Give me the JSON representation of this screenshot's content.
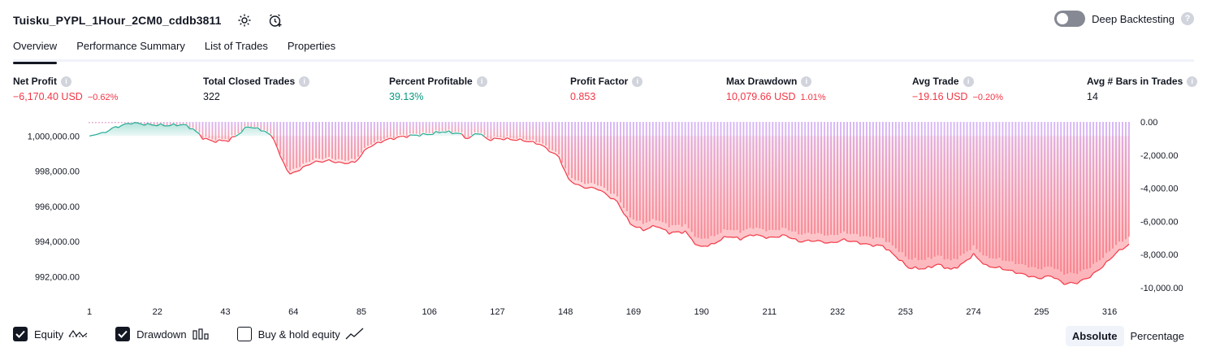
{
  "header": {
    "title": "Tuisku_PYPL_1Hour_2CM0_cddb3811",
    "settings_icon": "gear-icon",
    "alert_icon": "add-alert-clock-icon"
  },
  "deep_backtesting": {
    "label": "Deep Backtesting",
    "enabled": false,
    "help": "?"
  },
  "tabs": [
    {
      "label": "Overview",
      "active": true
    },
    {
      "label": "Performance Summary",
      "active": false
    },
    {
      "label": "List of Trades",
      "active": false
    },
    {
      "label": "Properties",
      "active": false
    }
  ],
  "metrics": [
    {
      "label": "Net Profit",
      "value": "−6,170.40 USD",
      "pct": "−0.62%",
      "color": "#f23645"
    },
    {
      "label": "Total Closed Trades",
      "value": "322",
      "pct": "",
      "color": "#131722"
    },
    {
      "label": "Percent Profitable",
      "value": "39.13%",
      "pct": "",
      "color": "#089981"
    },
    {
      "label": "Profit Factor",
      "value": "0.853",
      "pct": "",
      "color": "#f23645"
    },
    {
      "label": "Max Drawdown",
      "value": "10,079.66 USD",
      "pct": "1.01%",
      "color": "#f23645"
    },
    {
      "label": "Avg Trade",
      "value": "−19.16 USD",
      "pct": "−0.20%",
      "color": "#f23645"
    },
    {
      "label": "Avg # Bars in Trades",
      "value": "14",
      "pct": "",
      "color": "#131722"
    }
  ],
  "chart_data": {
    "type": "area",
    "x_ticks": [
      "1",
      "22",
      "43",
      "64",
      "85",
      "106",
      "127",
      "148",
      "169",
      "190",
      "211",
      "232",
      "253",
      "274",
      "295",
      "316"
    ],
    "left_axis": {
      "ticks": [
        "1,000,000.00",
        "998,000.00",
        "996,000.00",
        "994,000.00",
        "992,000.00"
      ],
      "tick_values": [
        1000000,
        998000,
        996000,
        994000,
        992000
      ],
      "range": [
        991000,
        1000800
      ]
    },
    "right_axis": {
      "ticks": [
        "0.00",
        "-2,000.00",
        "-4,000.00",
        "-6,000.00",
        "-8,000.00",
        "-10,000.00"
      ],
      "tick_values": [
        0,
        -2000,
        -4000,
        -6000,
        -8000,
        -10000
      ],
      "range": [
        -10400,
        0
      ]
    },
    "baseline": 1000000,
    "equity_anchors": [
      [
        1,
        1000000
      ],
      [
        5,
        1000150
      ],
      [
        9,
        1000500
      ],
      [
        14,
        1000750
      ],
      [
        19,
        1000650
      ],
      [
        25,
        1000600
      ],
      [
        30,
        1000650
      ],
      [
        33,
        1000400
      ],
      [
        36,
        999900
      ],
      [
        39,
        999700
      ],
      [
        44,
        999750
      ],
      [
        47,
        1000100
      ],
      [
        50,
        1000550
      ],
      [
        55,
        1000300
      ],
      [
        58,
        999850
      ],
      [
        60,
        998800
      ],
      [
        63,
        997800
      ],
      [
        66,
        998100
      ],
      [
        70,
        998500
      ],
      [
        75,
        998600
      ],
      [
        79,
        998450
      ],
      [
        83,
        998500
      ],
      [
        87,
        999350
      ],
      [
        92,
        999750
      ],
      [
        97,
        999950
      ],
      [
        102,
        1000050
      ],
      [
        106,
        1000100
      ],
      [
        110,
        1000250
      ],
      [
        115,
        1000150
      ],
      [
        118,
        999850
      ],
      [
        121,
        1000200
      ],
      [
        124,
        999800
      ],
      [
        128,
        999850
      ],
      [
        135,
        999750
      ],
      [
        140,
        999550
      ],
      [
        146,
        998800
      ],
      [
        149,
        997500
      ],
      [
        153,
        997100
      ],
      [
        158,
        997000
      ],
      [
        164,
        996250
      ],
      [
        168,
        995000
      ],
      [
        172,
        994650
      ],
      [
        176,
        994900
      ],
      [
        180,
        994500
      ],
      [
        185,
        994550
      ],
      [
        189,
        993700
      ],
      [
        193,
        993800
      ],
      [
        198,
        994300
      ],
      [
        202,
        994150
      ],
      [
        206,
        994400
      ],
      [
        211,
        994200
      ],
      [
        216,
        994350
      ],
      [
        220,
        994000
      ],
      [
        225,
        994050
      ],
      [
        230,
        993900
      ],
      [
        234,
        994100
      ],
      [
        238,
        993950
      ],
      [
        242,
        993800
      ],
      [
        246,
        993750
      ],
      [
        250,
        993150
      ],
      [
        254,
        992500
      ],
      [
        259,
        992450
      ],
      [
        263,
        992700
      ],
      [
        267,
        992400
      ],
      [
        270,
        992650
      ],
      [
        274,
        993250
      ],
      [
        278,
        992600
      ],
      [
        282,
        992500
      ],
      [
        286,
        992300
      ],
      [
        290,
        992100
      ],
      [
        294,
        991900
      ],
      [
        298,
        992050
      ],
      [
        302,
        991600
      ],
      [
        306,
        991650
      ],
      [
        310,
        992000
      ],
      [
        314,
        992600
      ],
      [
        318,
        993350
      ],
      [
        322,
        993830
      ]
    ],
    "drawdown_peak_sample": -10079.66,
    "series": [
      {
        "name": "Equity",
        "color_up": "#22ab94",
        "color_down": "#f7525f"
      },
      {
        "name": "Drawdown",
        "color": "#cba6f5"
      }
    ]
  },
  "legend": [
    {
      "label": "Equity",
      "checked": true,
      "icon": "equity-line-icon"
    },
    {
      "label": "Drawdown",
      "checked": true,
      "icon": "drawdown-bars-icon"
    },
    {
      "label": "Buy & hold equity",
      "checked": false,
      "icon": "buy-hold-line-icon"
    }
  ],
  "mode": {
    "options": [
      "Absolute",
      "Percentage"
    ],
    "selected": "Absolute"
  }
}
